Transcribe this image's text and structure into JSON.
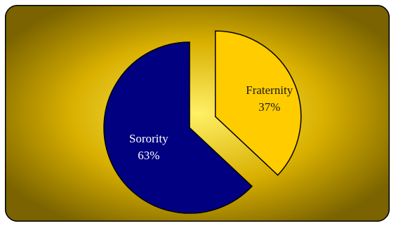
{
  "chart_data": {
    "type": "pie",
    "exploded_slice": "Fraternity",
    "slices": [
      {
        "label": "Fraternity",
        "value": 37,
        "value_label": "37%",
        "color": "#FFCC00",
        "text_color": "#1a1a1a"
      },
      {
        "label": "Sorority",
        "value": 63,
        "value_label": "63%",
        "color": "#000080",
        "text_color": "#ffffff"
      }
    ],
    "background": {
      "center_color": "#FFF066",
      "mid_color": "#D9B000",
      "edge_color": "#7A6300"
    },
    "legend": "none"
  }
}
